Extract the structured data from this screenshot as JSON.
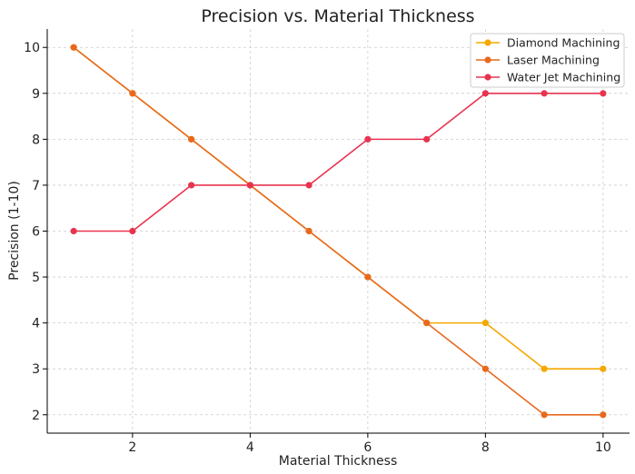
{
  "chart_data": {
    "type": "line",
    "title": "Precision vs. Material Thickness",
    "xlabel": "Material Thickness",
    "ylabel": "Precision (1-10)",
    "x": [
      1,
      2,
      3,
      4,
      5,
      6,
      7,
      8,
      9,
      10
    ],
    "xlim": [
      0.55,
      10.45
    ],
    "ylim": [
      1.6,
      10.4
    ],
    "xticks": [
      2,
      4,
      6,
      8,
      10
    ],
    "yticks": [
      2,
      3,
      4,
      5,
      6,
      7,
      8,
      9,
      10
    ],
    "grid": true,
    "legend_position": "top-right",
    "series": [
      {
        "name": "Diamond Machining",
        "color": "#f5a800",
        "values": [
          10,
          9,
          8,
          7,
          6,
          5,
          4,
          4,
          3,
          3
        ]
      },
      {
        "name": "Laser Machining",
        "color": "#e8691e",
        "values": [
          10,
          9,
          8,
          7,
          6,
          5,
          4,
          3,
          2,
          2
        ]
      },
      {
        "name": "Water Jet Machining",
        "color": "#e8334f",
        "values": [
          6,
          6,
          7,
          7,
          7,
          8,
          8,
          9,
          9,
          9
        ]
      }
    ]
  }
}
